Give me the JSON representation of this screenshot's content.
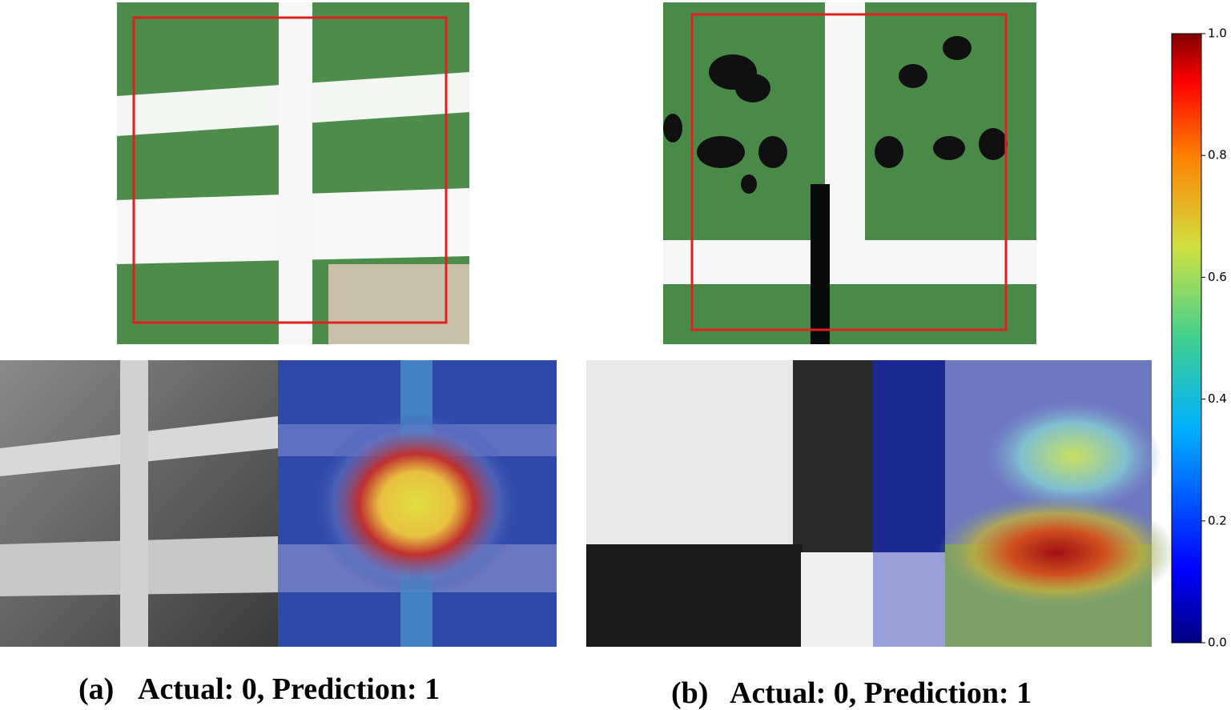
{
  "panels": [
    {
      "label": "(a)",
      "caption": "Actual: 0, Prediction: 1"
    },
    {
      "label": "(b)",
      "caption": "Actual: 0, Prediction: 1"
    }
  ],
  "colorbar": {
    "colormap": "jet",
    "lim": [
      0,
      1
    ],
    "ticks": [
      {
        "value": 0,
        "label": "0.0"
      },
      {
        "value": 0.2,
        "label": "0.2"
      },
      {
        "value": 0.4,
        "label": "0.4"
      },
      {
        "value": 0.6,
        "label": "0.6"
      },
      {
        "value": 0.8,
        "label": "0.8"
      },
      {
        "value": 1,
        "label": "1.0"
      }
    ]
  }
}
